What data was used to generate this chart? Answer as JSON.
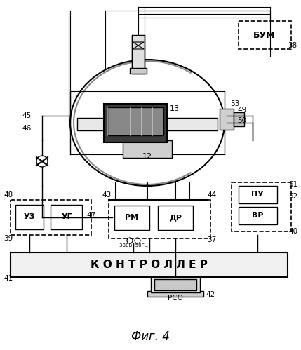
{
  "fig_title": "Фиг. 4",
  "bg_color": "#ffffff",
  "line_color": "#000000",
  "dashed_color": "#444444",
  "labels": {
    "BUM": "БУМ",
    "controller": "К О Н Т Р О Л Л Е Р",
    "RSO": "РСО",
    "UZ": "УЗ",
    "UG": "УГ",
    "RM": "РМ",
    "DR": "ДР",
    "PU": "ПУ",
    "VR": "ВР"
  },
  "numbers": {
    "n37": "37",
    "n38": "38",
    "n39": "39",
    "n40": "40",
    "n41": "41",
    "n42": "42",
    "n43": "43",
    "n44": "44",
    "n45": "45",
    "n46": "46",
    "n47": "47",
    "n48": "48",
    "n49": "49",
    "n50": "50",
    "n51": "51",
    "n52": "52",
    "n53": "53",
    "n12": "12",
    "n13": "13"
  }
}
